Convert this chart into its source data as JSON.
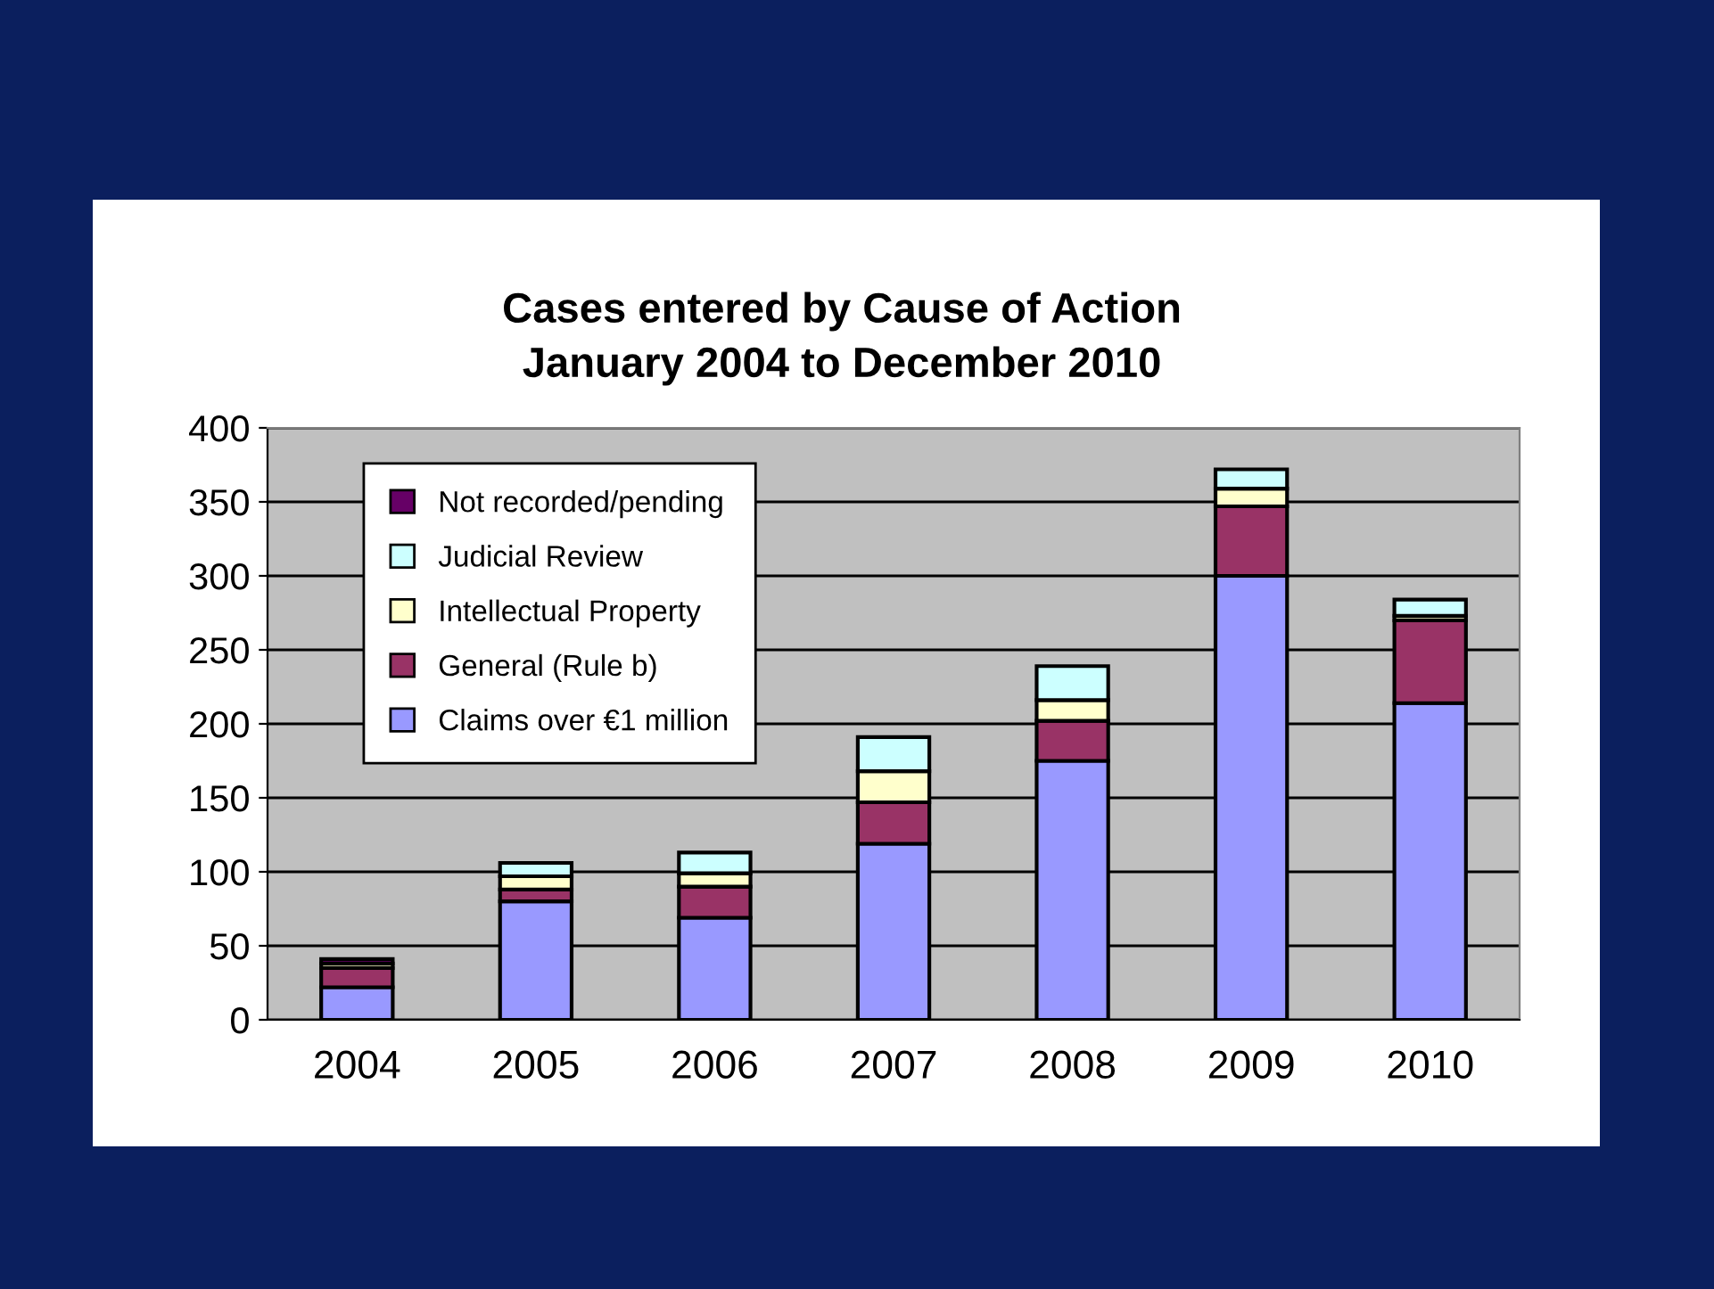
{
  "chart_data": {
    "type": "bar",
    "title": "Cases entered by Cause of Action\nJanuary 2004 to December 2010",
    "categories": [
      "2004",
      "2005",
      "2006",
      "2007",
      "2008",
      "2009",
      "2010"
    ],
    "stacked": true,
    "series": [
      {
        "name": "Claims over €1 million",
        "color": "#9999ff",
        "values": [
          22,
          80,
          69,
          119,
          175,
          300,
          214
        ]
      },
      {
        "name": "General (Rule b)",
        "color": "#993366",
        "values": [
          13,
          8,
          21,
          28,
          27,
          47,
          56
        ]
      },
      {
        "name": "Intellectual Property",
        "color": "#ffffcc",
        "values": [
          3,
          9,
          9,
          21,
          14,
          12,
          3
        ]
      },
      {
        "name": "Judicial Review",
        "color": "#ccffff",
        "values": [
          null,
          9,
          14,
          23,
          23,
          13,
          11
        ]
      },
      {
        "name": "Not recorded/pending",
        "color": "#660066",
        "values": [
          3,
          0,
          0,
          0,
          0,
          0,
          0
        ]
      }
    ],
    "ylim": [
      0,
      400
    ],
    "yticks": [
      0,
      50,
      100,
      150,
      200,
      250,
      300,
      350,
      400
    ],
    "grid": "y",
    "legend": "top left"
  }
}
